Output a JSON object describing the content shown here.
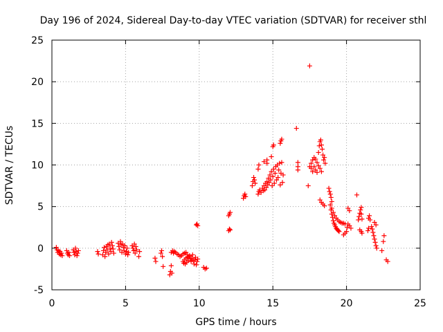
{
  "chart_data": {
    "type": "scatter",
    "title": "Day 196 of 2024, Sidereal Day-to-day VTEC variation (SDTVAR) for receiver sthl",
    "xlabel": "GPS time / hours",
    "ylabel": "SDTVAR / TECUs",
    "xlim": [
      0,
      25
    ],
    "ylim": [
      -5,
      25
    ],
    "xticks": [
      0,
      5,
      10,
      15,
      20,
      25
    ],
    "yticks": [
      -5,
      0,
      5,
      10,
      15,
      20,
      25
    ],
    "grid": true,
    "marker": "+",
    "marker_color": "#ff0000",
    "series": [
      {
        "name": "SDTVAR",
        "points": [
          [
            0.3,
            0.1
          ],
          [
            0.35,
            -0.2
          ],
          [
            0.4,
            -0.5
          ],
          [
            0.45,
            -0.3
          ],
          [
            0.5,
            -0.7
          ],
          [
            0.55,
            -0.4
          ],
          [
            0.6,
            -0.8
          ],
          [
            0.65,
            -0.6
          ],
          [
            0.7,
            -0.9
          ],
          [
            1.0,
            -0.3
          ],
          [
            1.05,
            -0.6
          ],
          [
            1.1,
            -0.8
          ],
          [
            1.15,
            -0.5
          ],
          [
            1.2,
            -0.9
          ],
          [
            1.45,
            -0.2
          ],
          [
            1.5,
            -0.5
          ],
          [
            1.55,
            -0.8
          ],
          [
            1.6,
            0.0
          ],
          [
            1.65,
            -0.4
          ],
          [
            1.7,
            -0.9
          ],
          [
            1.75,
            -0.6
          ],
          [
            1.8,
            -0.3
          ],
          [
            3.1,
            -0.4
          ],
          [
            3.15,
            -0.7
          ],
          [
            3.45,
            -0.8
          ],
          [
            3.5,
            -0.3
          ],
          [
            3.55,
            0.1
          ],
          [
            3.6,
            -1.0
          ],
          [
            3.65,
            -0.5
          ],
          [
            3.7,
            0.2
          ],
          [
            3.75,
            -0.2
          ],
          [
            3.8,
            0.4
          ],
          [
            3.85,
            -0.7
          ],
          [
            3.9,
            0.5
          ],
          [
            3.95,
            0.0
          ],
          [
            4.0,
            -0.4
          ],
          [
            4.05,
            0.7
          ],
          [
            4.1,
            0.3
          ],
          [
            4.15,
            -0.1
          ],
          [
            4.2,
            -0.6
          ],
          [
            4.5,
            0.6
          ],
          [
            4.55,
            0.2
          ],
          [
            4.6,
            -0.2
          ],
          [
            4.65,
            0.8
          ],
          [
            4.7,
            0.4
          ],
          [
            4.75,
            -0.5
          ],
          [
            4.8,
            0.5
          ],
          [
            4.85,
            0.1
          ],
          [
            4.9,
            -0.3
          ],
          [
            4.95,
            0.3
          ],
          [
            5.0,
            -0.7
          ],
          [
            5.05,
            -0.4
          ],
          [
            5.1,
            0.0
          ],
          [
            5.15,
            -0.8
          ],
          [
            5.2,
            -0.5
          ],
          [
            5.45,
            0.3
          ],
          [
            5.5,
            0.0
          ],
          [
            5.55,
            -0.3
          ],
          [
            5.6,
            0.5
          ],
          [
            5.65,
            -0.6
          ],
          [
            5.7,
            0.2
          ],
          [
            5.75,
            -0.2
          ],
          [
            5.9,
            -1.0
          ],
          [
            5.95,
            -0.4
          ],
          [
            7.0,
            -1.2
          ],
          [
            7.05,
            -1.6
          ],
          [
            7.4,
            -0.6
          ],
          [
            7.45,
            -0.3
          ],
          [
            7.5,
            -1.0
          ],
          [
            7.55,
            -2.2
          ],
          [
            8.0,
            -3.2
          ],
          [
            8.05,
            -2.8
          ],
          [
            8.1,
            -2.1
          ],
          [
            8.15,
            -3.0
          ],
          [
            8.1,
            -0.5
          ],
          [
            8.2,
            -0.3
          ],
          [
            8.25,
            -0.6
          ],
          [
            8.3,
            -0.4
          ],
          [
            8.4,
            -0.5
          ],
          [
            8.5,
            -0.7
          ],
          [
            8.6,
            -0.8
          ],
          [
            8.7,
            -1.0
          ],
          [
            8.8,
            -0.9
          ],
          [
            8.9,
            -0.7
          ],
          [
            9.0,
            -0.6
          ],
          [
            9.1,
            -0.5
          ],
          [
            9.2,
            -0.8
          ],
          [
            9.3,
            -1.0
          ],
          [
            8.9,
            -1.6
          ],
          [
            8.95,
            -1.8
          ],
          [
            9.0,
            -1.4
          ],
          [
            9.05,
            -1.9
          ],
          [
            9.1,
            -1.2
          ],
          [
            9.15,
            -1.7
          ],
          [
            9.2,
            -1.1
          ],
          [
            9.25,
            -1.5
          ],
          [
            9.35,
            -0.9
          ],
          [
            9.4,
            -1.3
          ],
          [
            9.45,
            -1.6
          ],
          [
            9.5,
            -1.2
          ],
          [
            9.55,
            -0.8
          ],
          [
            9.6,
            -1.5
          ],
          [
            9.65,
            -1.9
          ],
          [
            9.7,
            -1.4
          ],
          [
            9.75,
            -1.1
          ],
          [
            9.8,
            -2.0
          ],
          [
            9.85,
            -1.6
          ],
          [
            9.9,
            -1.3
          ],
          [
            9.8,
            2.8
          ],
          [
            9.85,
            2.9
          ],
          [
            9.9,
            2.7
          ],
          [
            10.3,
            -2.3
          ],
          [
            10.4,
            -2.5
          ],
          [
            10.5,
            -2.4
          ],
          [
            12.0,
            3.9
          ],
          [
            12.05,
            4.1
          ],
          [
            12.1,
            4.3
          ],
          [
            12.0,
            2.1
          ],
          [
            12.05,
            2.3
          ],
          [
            12.1,
            2.2
          ],
          [
            13.0,
            6.0
          ],
          [
            13.05,
            6.3
          ],
          [
            13.1,
            6.5
          ],
          [
            13.15,
            6.2
          ],
          [
            13.6,
            7.5
          ],
          [
            13.65,
            8.0
          ],
          [
            13.7,
            8.5
          ],
          [
            13.75,
            8.2
          ],
          [
            13.8,
            7.8
          ],
          [
            14.0,
            9.5
          ],
          [
            14.05,
            10.0
          ],
          [
            14.0,
            6.5
          ],
          [
            14.05,
            6.8
          ],
          [
            14.1,
            7.0
          ],
          [
            14.2,
            6.7
          ],
          [
            14.3,
            7.2
          ],
          [
            14.35,
            6.9
          ],
          [
            14.4,
            7.5
          ],
          [
            14.45,
            7.0
          ],
          [
            14.5,
            7.8
          ],
          [
            14.55,
            7.3
          ],
          [
            14.6,
            8.0
          ],
          [
            14.65,
            7.6
          ],
          [
            14.7,
            8.4
          ],
          [
            14.75,
            7.9
          ],
          [
            14.8,
            8.8
          ],
          [
            14.85,
            8.2
          ],
          [
            14.9,
            9.2
          ],
          [
            14.95,
            7.5
          ],
          [
            15.0,
            8.6
          ],
          [
            15.05,
            9.5
          ],
          [
            15.1,
            7.8
          ],
          [
            15.15,
            9.0
          ],
          [
            15.2,
            9.8
          ],
          [
            15.25,
            8.2
          ],
          [
            15.3,
            10.0
          ],
          [
            15.35,
            8.5
          ],
          [
            15.4,
            9.4
          ],
          [
            15.45,
            10.2
          ],
          [
            15.5,
            7.6
          ],
          [
            15.55,
            9.0
          ],
          [
            15.6,
            10.3
          ],
          [
            15.65,
            7.9
          ],
          [
            15.7,
            8.8
          ],
          [
            14.4,
            10.4
          ],
          [
            14.6,
            10.2
          ],
          [
            14.6,
            10.6
          ],
          [
            14.9,
            11.0
          ],
          [
            15.0,
            12.2
          ],
          [
            15.05,
            12.4
          ],
          [
            15.5,
            12.6
          ],
          [
            15.55,
            12.9
          ],
          [
            15.6,
            13.1
          ],
          [
            16.6,
            14.4
          ],
          [
            16.7,
            10.3
          ],
          [
            16.7,
            9.8
          ],
          [
            16.7,
            9.4
          ],
          [
            17.4,
            7.5
          ],
          [
            17.5,
            21.9
          ],
          [
            17.5,
            9.8
          ],
          [
            17.6,
            10.2
          ],
          [
            17.7,
            10.6
          ],
          [
            17.8,
            10.9
          ],
          [
            17.9,
            10.7
          ],
          [
            18.0,
            10.3
          ],
          [
            18.1,
            9.9
          ],
          [
            18.2,
            9.6
          ],
          [
            18.3,
            9.2
          ],
          [
            17.6,
            9.6
          ],
          [
            17.7,
            9.2
          ],
          [
            17.8,
            9.8
          ],
          [
            17.9,
            9.4
          ],
          [
            18.0,
            9.1
          ],
          [
            18.1,
            11.5
          ],
          [
            18.15,
            12.3
          ],
          [
            18.2,
            12.8
          ],
          [
            18.25,
            13.0
          ],
          [
            18.3,
            12.4
          ],
          [
            18.35,
            11.9
          ],
          [
            18.4,
            11.2
          ],
          [
            18.45,
            10.6
          ],
          [
            18.5,
            10.9
          ],
          [
            18.55,
            10.2
          ],
          [
            18.2,
            5.8
          ],
          [
            18.3,
            5.5
          ],
          [
            18.4,
            5.3
          ],
          [
            18.5,
            5.1
          ],
          [
            18.8,
            7.2
          ],
          [
            18.85,
            6.8
          ],
          [
            18.9,
            6.5
          ],
          [
            18.95,
            6.1
          ],
          [
            19.0,
            5.6
          ],
          [
            18.9,
            5.2
          ],
          [
            18.95,
            4.6
          ],
          [
            19.0,
            4.1
          ],
          [
            19.05,
            3.7
          ],
          [
            19.1,
            3.3
          ],
          [
            19.15,
            3.0
          ],
          [
            19.2,
            2.8
          ],
          [
            19.25,
            2.6
          ],
          [
            19.3,
            2.4
          ],
          [
            19.35,
            2.3
          ],
          [
            19.4,
            2.2
          ],
          [
            19.45,
            2.1
          ],
          [
            19.5,
            2.0
          ],
          [
            19.0,
            4.8
          ],
          [
            19.1,
            4.3
          ],
          [
            19.2,
            3.9
          ],
          [
            19.3,
            3.6
          ],
          [
            19.4,
            3.4
          ],
          [
            19.5,
            3.2
          ],
          [
            19.6,
            3.1
          ],
          [
            19.7,
            3.0
          ],
          [
            19.8,
            3.0
          ],
          [
            19.9,
            2.9
          ],
          [
            19.8,
            1.6
          ],
          [
            19.9,
            1.8
          ],
          [
            20.0,
            2.0
          ],
          [
            20.05,
            2.5
          ],
          [
            20.1,
            2.9
          ],
          [
            20.2,
            2.7
          ],
          [
            20.3,
            2.4
          ],
          [
            20.1,
            4.8
          ],
          [
            20.2,
            4.5
          ],
          [
            20.7,
            6.4
          ],
          [
            20.8,
            3.4
          ],
          [
            20.85,
            3.8
          ],
          [
            20.9,
            4.2
          ],
          [
            20.95,
            4.6
          ],
          [
            21.0,
            4.9
          ],
          [
            21.0,
            4.1
          ],
          [
            21.05,
            3.5
          ],
          [
            20.9,
            2.2
          ],
          [
            21.0,
            2.0
          ],
          [
            21.05,
            1.8
          ],
          [
            21.5,
            3.6
          ],
          [
            21.55,
            3.9
          ],
          [
            21.6,
            3.4
          ],
          [
            21.45,
            2.1
          ],
          [
            21.5,
            2.4
          ],
          [
            21.7,
            2.6
          ],
          [
            21.75,
            2.3
          ],
          [
            21.8,
            1.9
          ],
          [
            21.85,
            1.5
          ],
          [
            21.9,
            1.1
          ],
          [
            21.95,
            0.7
          ],
          [
            22.0,
            0.3
          ],
          [
            22.05,
            0.0
          ],
          [
            21.9,
            3.1
          ],
          [
            22.0,
            2.8
          ],
          [
            22.4,
            -0.3
          ],
          [
            22.5,
            0.8
          ],
          [
            22.55,
            1.5
          ],
          [
            22.7,
            -1.4
          ],
          [
            22.8,
            -1.6
          ]
        ]
      }
    ]
  }
}
